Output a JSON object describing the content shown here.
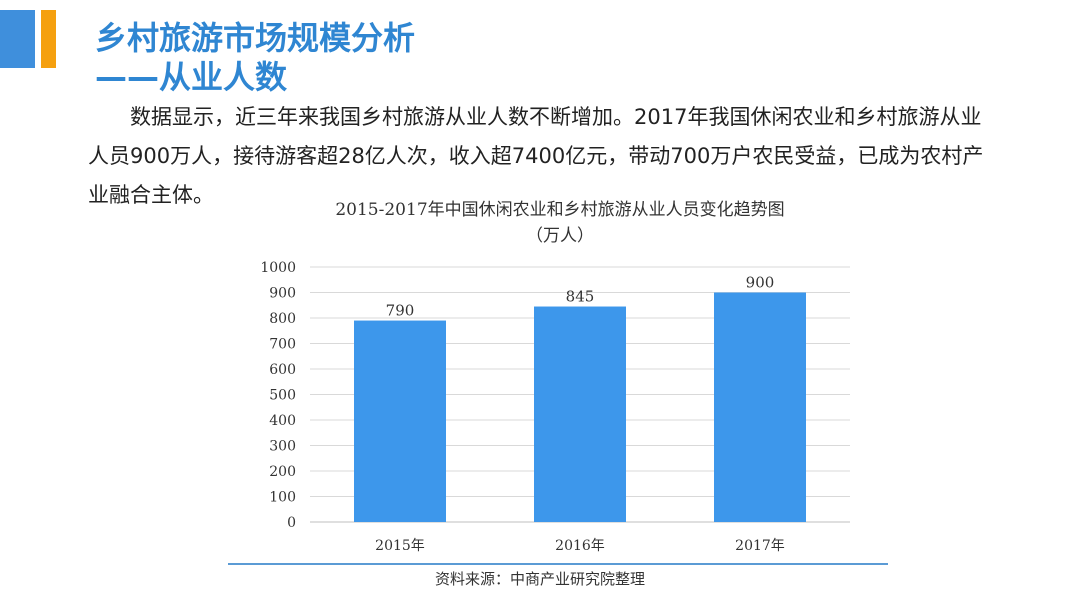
{
  "header": {
    "title": "乡村旅游市场规模分析",
    "subtitle": "——从业人数"
  },
  "body": {
    "paragraph": "数据显示，近三年来我国乡村旅游从业人数不断增加。2017年我国休闲农业和乡村旅游从业人员900万人，接待游客超28亿人次，收入超7400亿元，带动700万户农民受益，已成为农村产业融合主体。"
  },
  "colors": {
    "accent_blue": "#3f8fdc",
    "accent_orange": "#f5a00f",
    "title_blue": "#2f86d2",
    "bar_blue": "#3d97eb",
    "grid": "#d9d9d9"
  },
  "chart_data": {
    "type": "bar",
    "title": "2015-2017年中国休闲农业和乡村旅游从业人员变化趋势图",
    "subtitle": "（万人）",
    "categories": [
      "2015年",
      "2016年",
      "2017年"
    ],
    "values": [
      790,
      845,
      900
    ],
    "ylim": [
      0,
      1000
    ],
    "yticks": [
      0,
      100,
      200,
      300,
      400,
      500,
      600,
      700,
      800,
      900,
      1000
    ],
    "grid": true,
    "data_labels": true
  },
  "footer": {
    "source": "资料来源：中商产业研究院整理"
  }
}
